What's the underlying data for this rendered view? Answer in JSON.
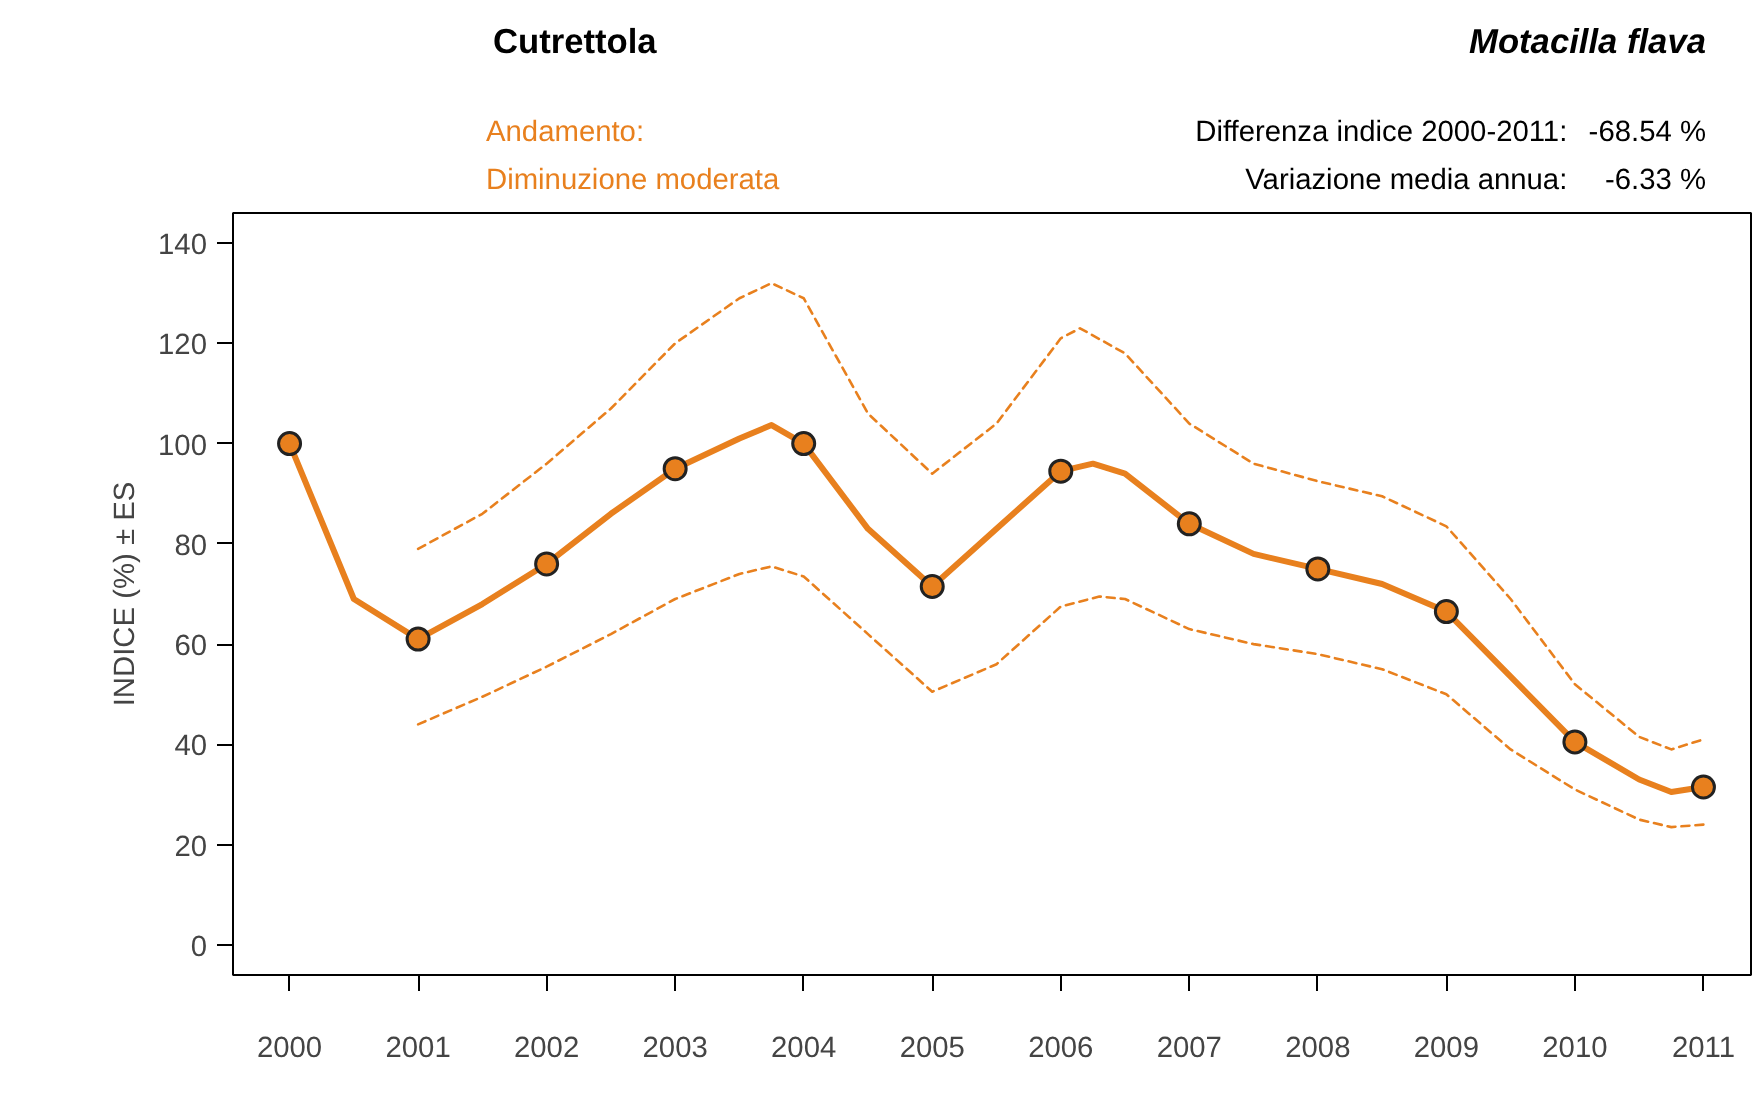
{
  "chart_data": {
    "type": "line",
    "title": "Cutrettola",
    "subtitle": "Motacilla flava",
    "ylabel": "INDICE (%) ± ES",
    "annotations": [
      "Andamento:",
      "Diminuzione moderata",
      "Differenza indice 2000-2011:",
      "Variazione media annua:",
      "-68.54 %",
      "-6.33 %"
    ],
    "x": [
      2000,
      2001,
      2002,
      2003,
      2004,
      2005,
      2006,
      2007,
      2008,
      2009,
      2010,
      2011
    ],
    "series": [
      {
        "color": "#e8801e",
        "line_style": "dashed",
        "marker": "none",
        "x": [
          2001,
          2001.5,
          2002,
          2002.5,
          2003,
          2003.5,
          2003.75,
          2004,
          2004.5,
          2005,
          2005.5,
          2006,
          2006.15,
          2006.5,
          2007,
          2007.5,
          2008,
          2008.5,
          2009,
          2009.5,
          2010,
          2010.5,
          2010.75,
          2011
        ],
        "values": [
          79,
          86,
          96,
          107,
          120,
          129,
          132,
          129,
          106,
          94,
          104,
          121,
          123,
          118,
          104,
          96,
          92.5,
          89.5,
          83.5,
          69,
          52,
          41.5,
          39,
          41
        ]
      },
      {
        "color": "#e8801e",
        "line_style": "dashed",
        "marker": "none",
        "x": [
          2001,
          2001.5,
          2002,
          2002.5,
          2003,
          2003.5,
          2003.75,
          2004,
          2004.5,
          2005,
          2005.5,
          2006,
          2006.3,
          2006.5,
          2007,
          2007.5,
          2008,
          2008.5,
          2009,
          2009.5,
          2010,
          2010.5,
          2010.75,
          2011
        ],
        "values": [
          44,
          49.5,
          55.5,
          62,
          69,
          74,
          75.5,
          73.5,
          62,
          50.5,
          56,
          67.5,
          69.5,
          69,
          63,
          60,
          58,
          55,
          50,
          39,
          31,
          25,
          23.5,
          24
        ]
      },
      {
        "color": "#e8801e",
        "line_style": "solid",
        "marker": "none",
        "x": [
          2000,
          2000.5,
          2001,
          2001.5,
          2002,
          2002.5,
          2003,
          2003.5,
          2003.75,
          2004,
          2004.5,
          2005,
          2005.5,
          2006,
          2006.25,
          2006.5,
          2007,
          2007.5,
          2008,
          2008.5,
          2009,
          2009.5,
          2010,
          2010.5,
          2010.75,
          2011
        ],
        "values": [
          100,
          69,
          61,
          68,
          76,
          86,
          95,
          101,
          103.7,
          100,
          83,
          71.5,
          83,
          94.5,
          96,
          94,
          84,
          78,
          75,
          72,
          66.5,
          53.5,
          40.5,
          33,
          30.5,
          31.5
        ]
      },
      {
        "type": "scatter",
        "marker": "circle",
        "color": "#e8801e",
        "values": [
          100,
          61,
          76,
          95,
          100,
          71.5,
          94.5,
          84,
          75,
          66.5,
          40.5,
          31.5
        ]
      }
    ],
    "xlim": [
      1999.56,
      2011.37
    ],
    "ylim": [
      -6,
      146
    ],
    "xticks": [
      2000,
      2001,
      2002,
      2003,
      2004,
      2005,
      2006,
      2007,
      2008,
      2009,
      2010,
      2011
    ],
    "yticks": [
      0,
      20,
      40,
      60,
      80,
      100,
      120,
      140
    ],
    "grid": false
  }
}
